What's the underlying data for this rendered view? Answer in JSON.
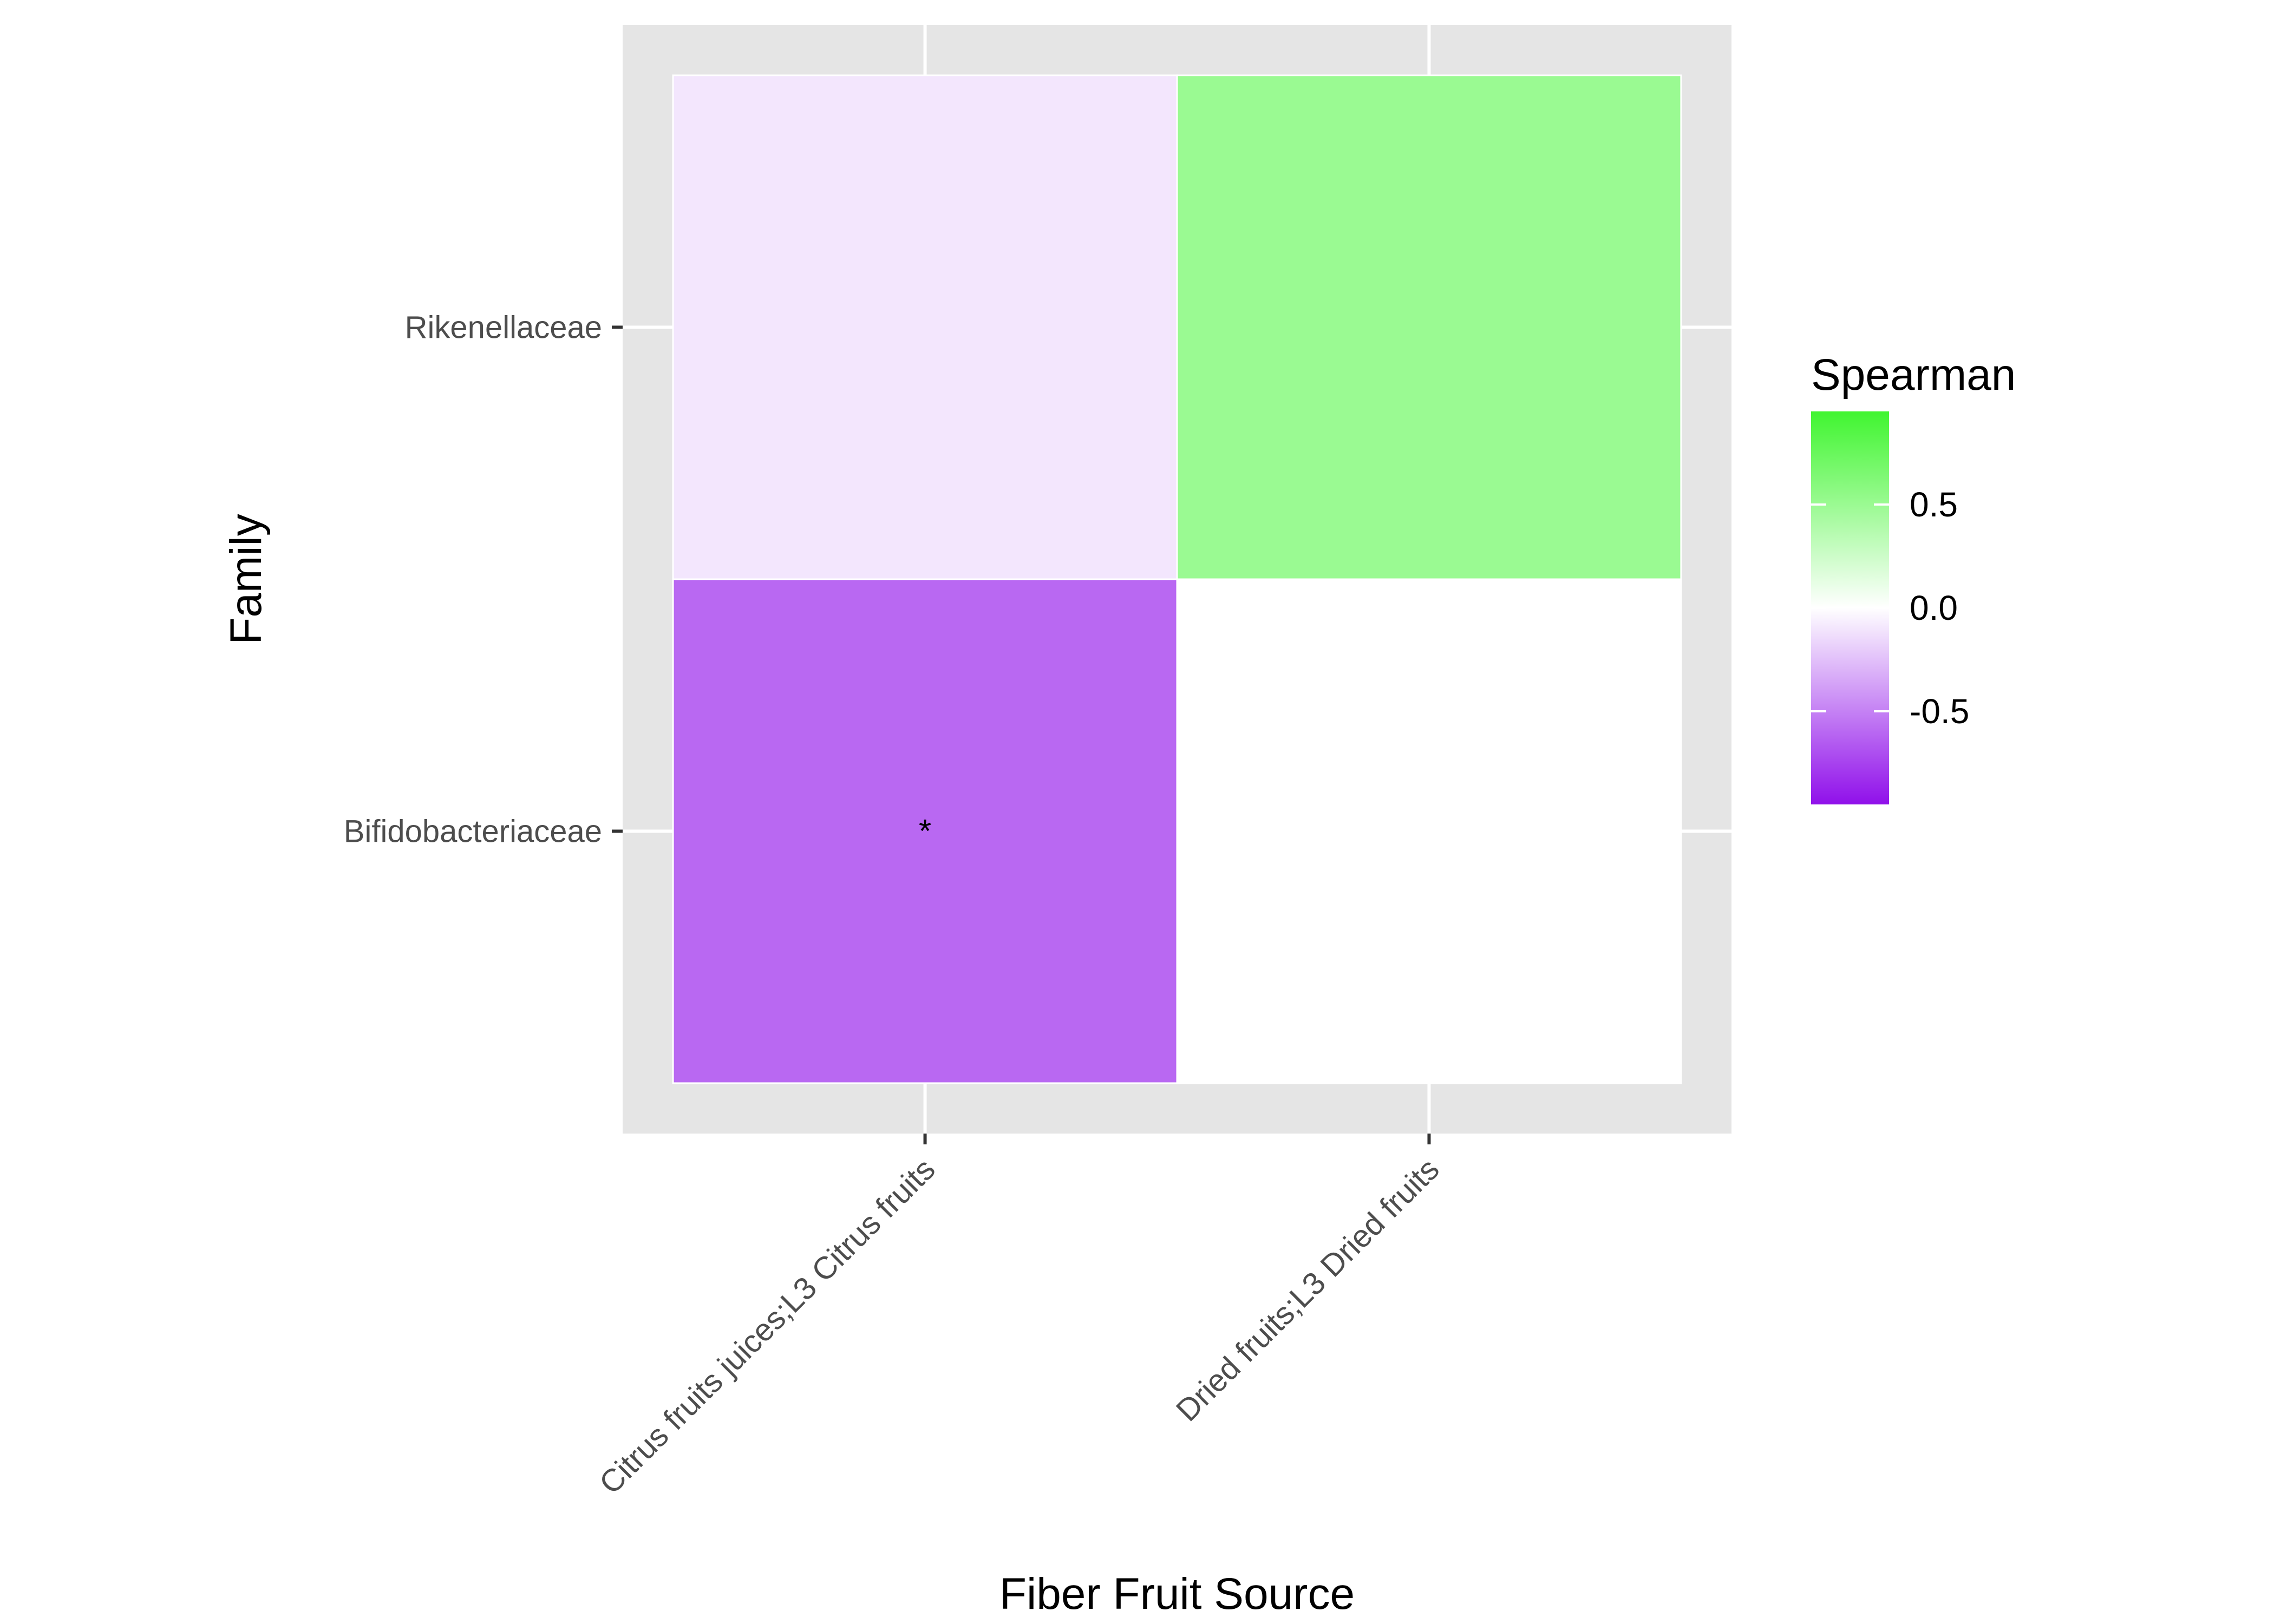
{
  "chart_data": {
    "type": "heatmap",
    "xlabel": "Fiber Fruit Source",
    "ylabel": "Family",
    "x_categories": [
      "Citrus fruits juices;L3 Citrus fruits",
      "Dried fruits;L3 Dried fruits"
    ],
    "y_categories": [
      "Rikenellaceae",
      "Bifidobacteriaceae"
    ],
    "values": [
      [
        -0.1,
        0.5
      ],
      [
        -0.6,
        0.0
      ]
    ],
    "annotations": [
      [
        "",
        ""
      ],
      [
        "*",
        ""
      ]
    ],
    "legend": {
      "title": "Spearman",
      "range": [
        -0.95,
        0.95
      ],
      "ticks": [
        0.5,
        0.0,
        -0.5
      ],
      "tick_labels": [
        "0.5",
        "0.0",
        "-0.5"
      ],
      "placement": "right"
    },
    "colors": {
      "low": "#9010EA",
      "mid": "#FFFFFF",
      "high": "#40F530",
      "panel_background": "#E5E5E5",
      "grid": "#FFFFFF"
    }
  }
}
